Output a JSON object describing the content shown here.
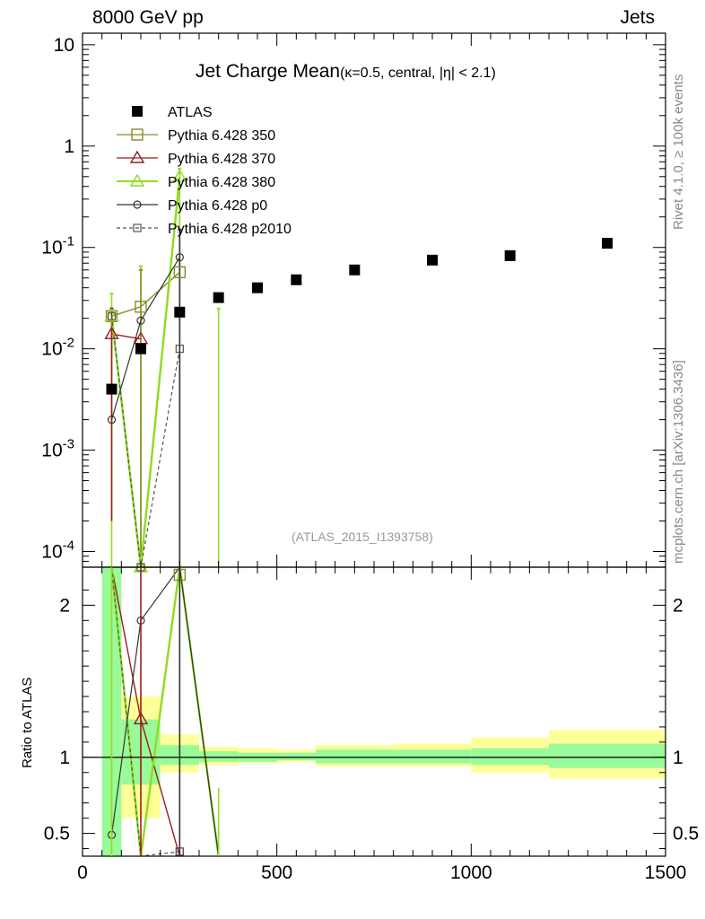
{
  "header": {
    "energy_label": "8000 GeV pp",
    "process_label": "Jets",
    "side_label_top": "Rivet 4.1.0, ≥ 100k events",
    "side_label_bottom": "mcplots.cern.ch [arXiv:1306.3436]",
    "watermark": "(ATLAS_2015_I1393758)"
  },
  "colors": {
    "atlas": "#000000",
    "p350": "#8b8b27",
    "p370": "#9b1c1c",
    "p380": "#8fdc1e",
    "p0": "#333333",
    "p2010": "#555555",
    "band_green": "#99fa99",
    "band_yellow": "#ffff99"
  },
  "chart_data": [
    {
      "type": "scatter",
      "panel": "main",
      "title": "Jet Charge Mean",
      "title_sub": "(κ=0.5, central, |η| < 2.1)",
      "xlabel": "",
      "ylabel": "",
      "xlim": [
        0,
        1500
      ],
      "ylim": [
        7e-05,
        13
      ],
      "yscale": "log",
      "y_tick_labels": [
        "10",
        "1",
        "10^-1",
        "10^-2",
        "10^-3",
        "10^-4"
      ],
      "series": [
        {
          "name": "ATLAS",
          "style": "filled-square",
          "x": [
            75,
            150,
            250,
            350,
            450,
            550,
            700,
            900,
            1100,
            1350
          ],
          "y": [
            0.004,
            0.01,
            0.023,
            0.032,
            0.04,
            0.048,
            0.06,
            0.075,
            0.083,
            0.11
          ]
        },
        {
          "name": "Pythia 6.428 350",
          "style": "open-square-line",
          "x": [
            75,
            150,
            250
          ],
          "y": [
            0.021,
            0.026,
            0.057
          ]
        },
        {
          "name": "Pythia 6.428 370",
          "style": "open-triangle-line",
          "x": [
            75,
            150
          ],
          "y": [
            0.014,
            0.0125
          ]
        },
        {
          "name": "Pythia 6.428 380",
          "style": "open-triangle-line",
          "x": [
            75,
            150,
            250
          ],
          "y": [
            0.021,
            7e-05,
            0.5
          ]
        },
        {
          "name": "Pythia 6.428 p0",
          "style": "open-circle-line",
          "x": [
            75,
            150,
            250
          ],
          "y": [
            0.002,
            0.019,
            0.08
          ]
        },
        {
          "name": "Pythia 6.428 p2010",
          "style": "open-square-dashed",
          "x": [
            75,
            150,
            250
          ],
          "y": [
            0.021,
            7e-05,
            0.01
          ]
        }
      ]
    },
    {
      "type": "line",
      "panel": "ratio",
      "ylabel": "Ratio to ATLAS",
      "xlim": [
        0,
        1500
      ],
      "ylim": [
        0.35,
        2.25
      ],
      "x_tick_labels": [
        "0",
        "500",
        "1000",
        "1500"
      ],
      "y_tick_labels": [
        "0.5",
        "1",
        "2"
      ],
      "bands": [
        {
          "xlo": 50,
          "xhi": 100,
          "green": [
            0.35,
            2.25
          ],
          "yellow": [
            0.35,
            2.25
          ]
        },
        {
          "xlo": 100,
          "xhi": 200,
          "green": [
            0.82,
            1.25
          ],
          "yellow": [
            0.6,
            1.4
          ]
        },
        {
          "xlo": 200,
          "xhi": 300,
          "green": [
            0.95,
            1.08
          ],
          "yellow": [
            0.9,
            1.15
          ]
        },
        {
          "xlo": 300,
          "xhi": 400,
          "green": [
            0.97,
            1.04
          ],
          "yellow": [
            0.95,
            1.07
          ]
        },
        {
          "xlo": 400,
          "xhi": 500,
          "green": [
            0.97,
            1.03
          ],
          "yellow": [
            0.96,
            1.06
          ]
        },
        {
          "xlo": 500,
          "xhi": 600,
          "green": [
            0.98,
            1.03
          ],
          "yellow": [
            0.97,
            1.05
          ]
        },
        {
          "xlo": 600,
          "xhi": 800,
          "green": [
            0.96,
            1.05
          ],
          "yellow": [
            0.94,
            1.08
          ]
        },
        {
          "xlo": 800,
          "xhi": 1000,
          "green": [
            0.96,
            1.05
          ],
          "yellow": [
            0.94,
            1.09
          ]
        },
        {
          "xlo": 1000,
          "xhi": 1200,
          "green": [
            0.95,
            1.06
          ],
          "yellow": [
            0.9,
            1.13
          ]
        },
        {
          "xlo": 1200,
          "xhi": 1500,
          "green": [
            0.93,
            1.09
          ],
          "yellow": [
            0.86,
            1.18
          ]
        }
      ],
      "series": [
        {
          "name": "Pythia 6.428 350",
          "x": [
            75,
            150,
            250
          ],
          "y": [
            2.25,
            2.25,
            2.25
          ]
        },
        {
          "name": "Pythia 6.428 370",
          "x": [
            75,
            150,
            250
          ],
          "y": [
            2.25,
            1.25,
            0.35
          ]
        },
        {
          "name": "Pythia 6.428 380",
          "x": [
            75,
            150,
            250,
            350
          ],
          "y": [
            2.25,
            0.35,
            2.25,
            0.35
          ]
        },
        {
          "name": "Pythia 6.428 p0",
          "x": [
            75,
            150,
            250,
            350
          ],
          "y": [
            0.49,
            1.9,
            2.25,
            0.35
          ]
        },
        {
          "name": "Pythia 6.428 p2010",
          "x": [
            75,
            150,
            250
          ],
          "y": [
            2.25,
            0.35,
            0.38
          ]
        }
      ]
    }
  ]
}
